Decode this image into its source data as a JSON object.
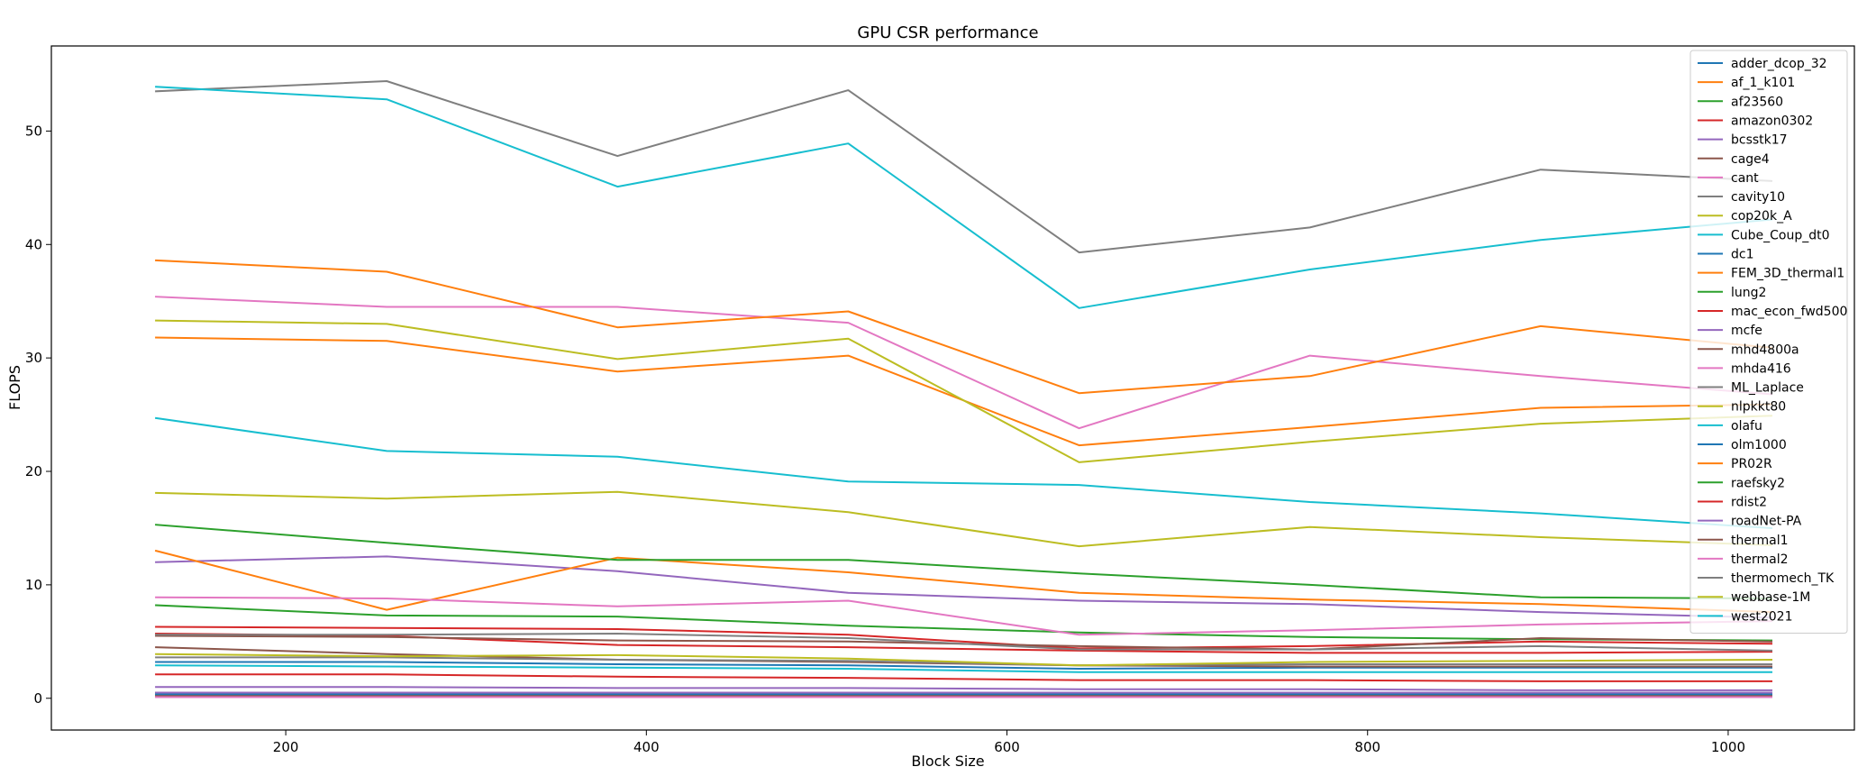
{
  "chart_data": {
    "type": "line",
    "title": "GPU CSR performance",
    "xlabel": "Block Size",
    "ylabel": "FLOPS",
    "xlim": [
      70,
      1070
    ],
    "ylim": [
      -2.8,
      57.5
    ],
    "xticks": [
      200,
      400,
      600,
      800,
      1000
    ],
    "yticks": [
      0,
      10,
      20,
      30,
      40,
      50
    ],
    "grid": false,
    "legend": "top-right",
    "x": [
      128,
      256,
      384,
      512,
      640,
      768,
      896,
      1024
    ],
    "series": [
      {
        "name": "adder_dcop_32",
        "color": "#1f77b4",
        "values": [
          0.3,
          0.3,
          0.3,
          0.3,
          0.3,
          0.3,
          0.3,
          0.3
        ]
      },
      {
        "name": "af_1_k101",
        "color": "#ff7f0e",
        "values": [
          31.8,
          31.5,
          28.8,
          30.2,
          22.3,
          23.9,
          25.6,
          25.9
        ]
      },
      {
        "name": "af23560",
        "color": "#2ca02c",
        "values": [
          8.2,
          7.3,
          7.2,
          6.4,
          5.8,
          5.4,
          5.2,
          5.1
        ]
      },
      {
        "name": "amazon0302",
        "color": "#d62728",
        "values": [
          2.1,
          2.1,
          1.9,
          1.8,
          1.6,
          1.6,
          1.5,
          1.5
        ]
      },
      {
        "name": "bcsstk17",
        "color": "#9467bd",
        "values": [
          12.0,
          12.5,
          11.2,
          9.3,
          8.6,
          8.3,
          7.6,
          7.1
        ]
      },
      {
        "name": "cage4",
        "color": "#8c564b",
        "values": [
          0.2,
          0.2,
          0.2,
          0.2,
          0.2,
          0.2,
          0.2,
          0.2
        ]
      },
      {
        "name": "cant",
        "color": "#e377c2",
        "values": [
          35.4,
          34.5,
          34.5,
          33.1,
          23.8,
          30.2,
          28.4,
          26.8
        ]
      },
      {
        "name": "cavity10",
        "color": "#7f7f7f",
        "values": [
          53.5,
          54.4,
          47.8,
          53.6,
          39.3,
          41.5,
          46.6,
          45.6
        ]
      },
      {
        "name": "cop20k_A",
        "color": "#bcbd22",
        "values": [
          33.3,
          33.0,
          29.9,
          31.7,
          20.8,
          22.6,
          24.2,
          24.9
        ]
      },
      {
        "name": "Cube_Coup_dt0",
        "color": "#17becf",
        "values": [
          53.9,
          52.8,
          45.1,
          48.9,
          34.4,
          37.8,
          40.4,
          42.2
        ]
      },
      {
        "name": "dc1",
        "color": "#1f77b4",
        "values": [
          3.2,
          3.2,
          3.0,
          2.9,
          2.6,
          2.7,
          2.7,
          2.7
        ]
      },
      {
        "name": "FEM_3D_thermal1",
        "color": "#ff7f0e",
        "values": [
          38.6,
          37.6,
          32.7,
          34.1,
          26.9,
          28.4,
          32.8,
          30.9
        ]
      },
      {
        "name": "lung2",
        "color": "#2ca02c",
        "values": [
          0.5,
          0.5,
          0.5,
          0.5,
          0.5,
          0.5,
          0.5,
          0.5
        ]
      },
      {
        "name": "mac_econ_fwd500",
        "color": "#d62728",
        "values": [
          6.3,
          6.2,
          6.1,
          5.6,
          4.4,
          4.6,
          5.0,
          4.8
        ]
      },
      {
        "name": "mcfe",
        "color": "#9467bd",
        "values": [
          1.0,
          1.0,
          0.9,
          0.9,
          0.8,
          0.8,
          0.7,
          0.7
        ]
      },
      {
        "name": "mhd4800a",
        "color": "#8c564b",
        "values": [
          4.5,
          3.9,
          3.4,
          3.2,
          2.9,
          2.8,
          2.8,
          2.8
        ]
      },
      {
        "name": "mhda416",
        "color": "#e377c2",
        "values": [
          0.1,
          0.1,
          0.1,
          0.1,
          0.1,
          0.1,
          0.1,
          0.1
        ]
      },
      {
        "name": "ML_Laplace",
        "color": "#7f7f7f",
        "values": [
          3.6,
          3.6,
          3.4,
          3.3,
          2.9,
          3.0,
          3.0,
          3.0
        ]
      },
      {
        "name": "nlpkkt80",
        "color": "#bcbd22",
        "values": [
          3.9,
          3.7,
          3.8,
          3.5,
          2.9,
          3.2,
          3.3,
          3.4
        ]
      },
      {
        "name": "olafu",
        "color": "#17becf",
        "values": [
          24.7,
          21.8,
          21.3,
          19.1,
          18.8,
          17.3,
          16.3,
          15.0
        ]
      },
      {
        "name": "olm1000",
        "color": "#1f77b4",
        "values": [
          0.4,
          0.4,
          0.4,
          0.4,
          0.4,
          0.4,
          0.4,
          0.4
        ]
      },
      {
        "name": "PR02R",
        "color": "#ff7f0e",
        "values": [
          13.0,
          7.8,
          12.4,
          11.1,
          9.3,
          8.7,
          8.3,
          7.6
        ]
      },
      {
        "name": "raefsky2",
        "color": "#2ca02c",
        "values": [
          15.3,
          13.7,
          12.2,
          12.2,
          11.0,
          10.0,
          8.9,
          8.8
        ]
      },
      {
        "name": "rdist2",
        "color": "#d62728",
        "values": [
          5.7,
          5.5,
          4.7,
          4.5,
          4.2,
          4.0,
          4.0,
          4.1
        ]
      },
      {
        "name": "roadNet-PA",
        "color": "#9467bd",
        "values": [
          0.5,
          0.5,
          0.5,
          0.5,
          0.5,
          0.5,
          0.5,
          0.5
        ]
      },
      {
        "name": "thermal1",
        "color": "#8c564b",
        "values": [
          5.5,
          5.4,
          5.1,
          5.0,
          4.6,
          4.3,
          5.3,
          5.0
        ]
      },
      {
        "name": "thermal2",
        "color": "#e377c2",
        "values": [
          8.9,
          8.8,
          8.1,
          8.6,
          5.6,
          6.0,
          6.5,
          6.8
        ]
      },
      {
        "name": "thermomech_TK",
        "color": "#7f7f7f",
        "values": [
          5.6,
          5.6,
          5.7,
          5.3,
          4.3,
          4.3,
          4.6,
          4.2
        ]
      },
      {
        "name": "webbase-1M",
        "color": "#bcbd22",
        "values": [
          18.1,
          17.6,
          18.2,
          16.4,
          13.4,
          15.1,
          14.2,
          13.5
        ]
      },
      {
        "name": "west2021",
        "color": "#17becf",
        "values": [
          2.9,
          2.8,
          2.7,
          2.6,
          2.3,
          2.3,
          2.3,
          2.3
        ]
      }
    ]
  }
}
